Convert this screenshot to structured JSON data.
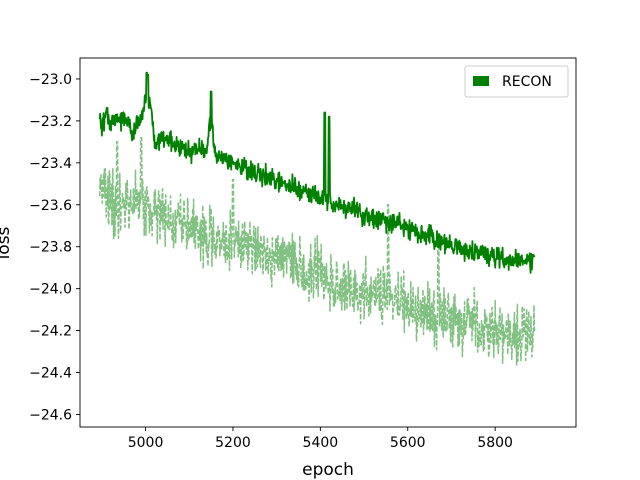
{
  "chart_data": {
    "type": "line",
    "title": "",
    "xlabel": "epoch",
    "ylabel": "loss",
    "xlim": [
      4850,
      5985
    ],
    "ylim": [
      -24.66,
      -22.9
    ],
    "xticks": [
      5000,
      5200,
      5400,
      5600,
      5800
    ],
    "yticks": [
      -23.0,
      -23.2,
      -23.4,
      -23.6,
      -23.8,
      -24.0,
      -24.2,
      -24.4,
      -24.6
    ],
    "xtick_labels": [
      "5000",
      "5200",
      "5400",
      "5600",
      "5800"
    ],
    "ytick_labels": [
      "−23.0",
      "−23.2",
      "−23.4",
      "−23.6",
      "−23.8",
      "−24.0",
      "−24.2",
      "−24.4",
      "−24.6"
    ],
    "grid": false,
    "legend": {
      "placement": "top-right",
      "entries": [
        "RECON"
      ]
    },
    "series": [
      {
        "name": "RECON",
        "style": "solid",
        "color": "#008000",
        "x_range": [
          4895,
          5890
        ],
        "anchors": [
          [
            4895,
            -23.18
          ],
          [
            4900,
            -23.24
          ],
          [
            4910,
            -23.15
          ],
          [
            4920,
            -23.21
          ],
          [
            4930,
            -23.19
          ],
          [
            4940,
            -23.2
          ],
          [
            4950,
            -23.18
          ],
          [
            4960,
            -23.22
          ],
          [
            4970,
            -23.27
          ],
          [
            4980,
            -23.22
          ],
          [
            4990,
            -23.2
          ],
          [
            5000,
            -23.09
          ],
          [
            5010,
            -23.12
          ],
          [
            5020,
            -23.3
          ],
          [
            5040,
            -23.28
          ],
          [
            5060,
            -23.3
          ],
          [
            5080,
            -23.32
          ],
          [
            5100,
            -23.34
          ],
          [
            5120,
            -23.33
          ],
          [
            5140,
            -23.35
          ],
          [
            5150,
            -23.18
          ],
          [
            5160,
            -23.36
          ],
          [
            5180,
            -23.38
          ],
          [
            5200,
            -23.4
          ],
          [
            5220,
            -23.42
          ],
          [
            5240,
            -23.44
          ],
          [
            5260,
            -23.45
          ],
          [
            5280,
            -23.47
          ],
          [
            5300,
            -23.49
          ],
          [
            5320,
            -23.5
          ],
          [
            5340,
            -23.52
          ],
          [
            5360,
            -23.53
          ],
          [
            5380,
            -23.55
          ],
          [
            5400,
            -23.57
          ],
          [
            5420,
            -23.58
          ],
          [
            5440,
            -23.59
          ],
          [
            5460,
            -23.62
          ],
          [
            5480,
            -23.63
          ],
          [
            5500,
            -23.65
          ],
          [
            5520,
            -23.66
          ],
          [
            5540,
            -23.67
          ],
          [
            5560,
            -23.68
          ],
          [
            5580,
            -23.69
          ],
          [
            5600,
            -23.71
          ],
          [
            5620,
            -23.73
          ],
          [
            5640,
            -23.75
          ],
          [
            5660,
            -23.76
          ],
          [
            5680,
            -23.78
          ],
          [
            5700,
            -23.8
          ],
          [
            5720,
            -23.81
          ],
          [
            5740,
            -23.82
          ],
          [
            5760,
            -23.83
          ],
          [
            5780,
            -23.84
          ],
          [
            5800,
            -23.85
          ],
          [
            5820,
            -23.86
          ],
          [
            5840,
            -23.87
          ],
          [
            5860,
            -23.86
          ],
          [
            5880,
            -23.87
          ],
          [
            5890,
            -23.85
          ]
        ],
        "noise_amplitude": 0.07,
        "peaks": [
          [
            5003,
            -22.97
          ],
          [
            5005,
            -22.98
          ],
          [
            5150,
            -23.06
          ],
          [
            5410,
            -23.16
          ],
          [
            5420,
            -23.18
          ]
        ]
      },
      {
        "name": "",
        "style": "dashed",
        "color": "#80c080",
        "x_range": [
          4895,
          5890
        ],
        "anchors": [
          [
            4895,
            -23.5
          ],
          [
            4920,
            -23.57
          ],
          [
            4940,
            -23.62
          ],
          [
            4960,
            -23.58
          ],
          [
            4980,
            -23.55
          ],
          [
            5000,
            -23.62
          ],
          [
            5020,
            -23.64
          ],
          [
            5040,
            -23.62
          ],
          [
            5060,
            -23.69
          ],
          [
            5080,
            -23.65
          ],
          [
            5100,
            -23.71
          ],
          [
            5120,
            -23.73
          ],
          [
            5140,
            -23.74
          ],
          [
            5160,
            -23.78
          ],
          [
            5180,
            -23.76
          ],
          [
            5200,
            -23.77
          ],
          [
            5220,
            -23.81
          ],
          [
            5240,
            -23.82
          ],
          [
            5260,
            -23.83
          ],
          [
            5280,
            -23.85
          ],
          [
            5300,
            -23.87
          ],
          [
            5320,
            -23.86
          ],
          [
            5340,
            -23.89
          ],
          [
            5360,
            -23.91
          ],
          [
            5380,
            -23.92
          ],
          [
            5400,
            -23.9
          ],
          [
            5420,
            -23.96
          ],
          [
            5440,
            -23.98
          ],
          [
            5460,
            -24.0
          ],
          [
            5480,
            -24.01
          ],
          [
            5500,
            -24.02
          ],
          [
            5520,
            -24.03
          ],
          [
            5540,
            -24.04
          ],
          [
            5560,
            -24.06
          ],
          [
            5580,
            -24.05
          ],
          [
            5600,
            -24.09
          ],
          [
            5620,
            -24.1
          ],
          [
            5640,
            -24.12
          ],
          [
            5660,
            -24.13
          ],
          [
            5680,
            -24.14
          ],
          [
            5700,
            -24.16
          ],
          [
            5720,
            -24.16
          ],
          [
            5740,
            -24.17
          ],
          [
            5760,
            -24.19
          ],
          [
            5780,
            -24.2
          ],
          [
            5800,
            -24.21
          ],
          [
            5820,
            -24.22
          ],
          [
            5840,
            -24.23
          ],
          [
            5860,
            -24.22
          ],
          [
            5880,
            -24.23
          ],
          [
            5890,
            -24.2
          ]
        ],
        "noise_amplitude": 0.2,
        "peaks": [
          [
            4935,
            -23.3
          ],
          [
            4990,
            -23.28
          ],
          [
            5200,
            -23.48
          ],
          [
            5555,
            -23.6
          ],
          [
            5670,
            -23.75
          ]
        ]
      }
    ]
  }
}
